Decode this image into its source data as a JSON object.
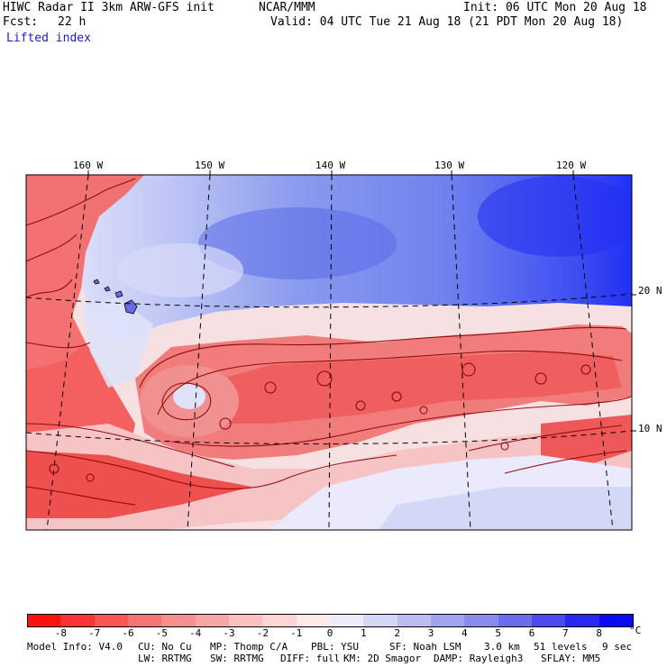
{
  "header": {
    "left1": "HIWC Radar II 3km ARW-GFS init",
    "center1": "NCAR/MMM",
    "right1": "Init: 06 UTC Mon 20 Aug 18",
    "fcst_label": "Fcst:",
    "fcst_value": "22 h",
    "valid": "Valid: 04 UTC Tue 21 Aug 18 (21 PDT Mon 20 Aug 18)",
    "field": "Lifted index"
  },
  "map": {
    "lon_labels": [
      "160 W",
      "150 W",
      "140 W",
      "130 W",
      "120 W"
    ],
    "lat_labels": [
      "20 N",
      "10 N"
    ]
  },
  "colorbar": {
    "ticks": [
      "-8",
      "-7",
      "-6",
      "-5",
      "-4",
      "-3",
      "-2",
      "-1",
      "0",
      "1",
      "2",
      "3",
      "4",
      "5",
      "6",
      "7",
      "8"
    ],
    "unit": "°C",
    "colors": [
      "#ff1111",
      "#ff3333",
      "#fc5555",
      "#f87373",
      "#f88e8e",
      "#f8a6a6",
      "#fac0c0",
      "#fcd6d6",
      "#feeaea",
      "#ececfc",
      "#d6d6f6",
      "#bcbcf2",
      "#a2a2ee",
      "#8a8aec",
      "#6c6cee",
      "#4a4af0",
      "#2828f2",
      "#0a0af8"
    ]
  },
  "model_info": {
    "row1": [
      "Model Info: V4.0",
      "CU: No Cu",
      "MP: Thomp C/A",
      "PBL: YSU",
      "SF: Noah LSM",
      "3.0 km",
      "51 levels",
      "9 sec"
    ],
    "row2": [
      "LW: RRTMG",
      "SW: RRTMG",
      "DIFF: full",
      "KM: 2D Smagor",
      "DAMP: Rayleigh3",
      "SFLAY: MM5"
    ]
  }
}
